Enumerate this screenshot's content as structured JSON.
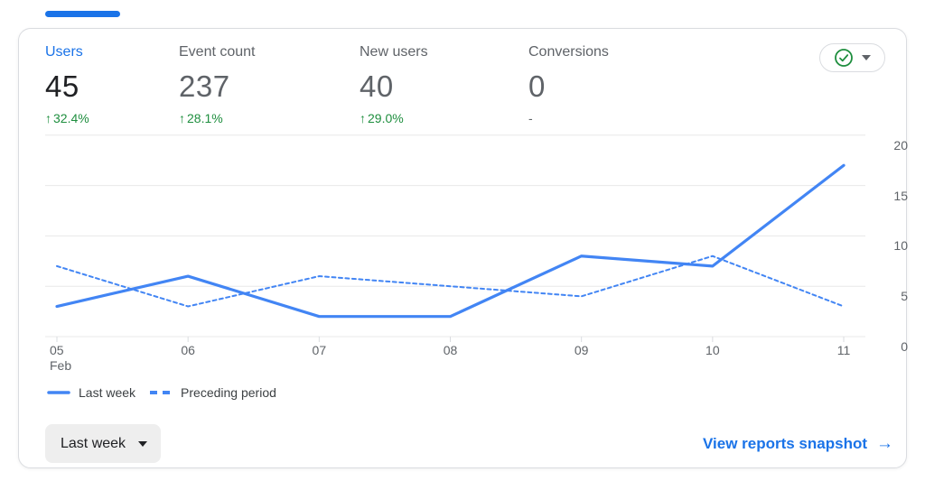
{
  "metrics": [
    {
      "label": "Users",
      "value": "45",
      "arrow": "↑",
      "delta": "32.4%"
    },
    {
      "label": "Event count",
      "value": "237",
      "arrow": "↑",
      "delta": "28.1%"
    },
    {
      "label": "New users",
      "value": "40",
      "arrow": "↑",
      "delta": "29.0%"
    },
    {
      "label": "Conversions",
      "value": "0",
      "arrow": "",
      "delta": "-"
    }
  ],
  "status_button": {
    "icon": "check-circle-icon",
    "icon_color": "#1e8e3e"
  },
  "chart_data": {
    "type": "line",
    "x": [
      "05",
      "06",
      "07",
      "08",
      "09",
      "10",
      "11"
    ],
    "x_first_sublabel": "Feb",
    "series": [
      {
        "name": "Last week",
        "style": "solid",
        "values": [
          3,
          6,
          2,
          2,
          8,
          7,
          17
        ]
      },
      {
        "name": "Preceding period",
        "style": "dashed",
        "values": [
          7,
          3,
          6,
          5,
          4,
          8,
          3
        ]
      }
    ],
    "ylim": [
      0,
      20
    ],
    "yticks": [
      0,
      5,
      10,
      15,
      20
    ],
    "grid": "horizontal",
    "legend_position": "bottom-left",
    "line_color": "#4285f4",
    "grid_color": "#e8e8e8"
  },
  "footer": {
    "range_selector": "Last week",
    "link_label": "View reports snapshot",
    "link_arrow": "→"
  }
}
